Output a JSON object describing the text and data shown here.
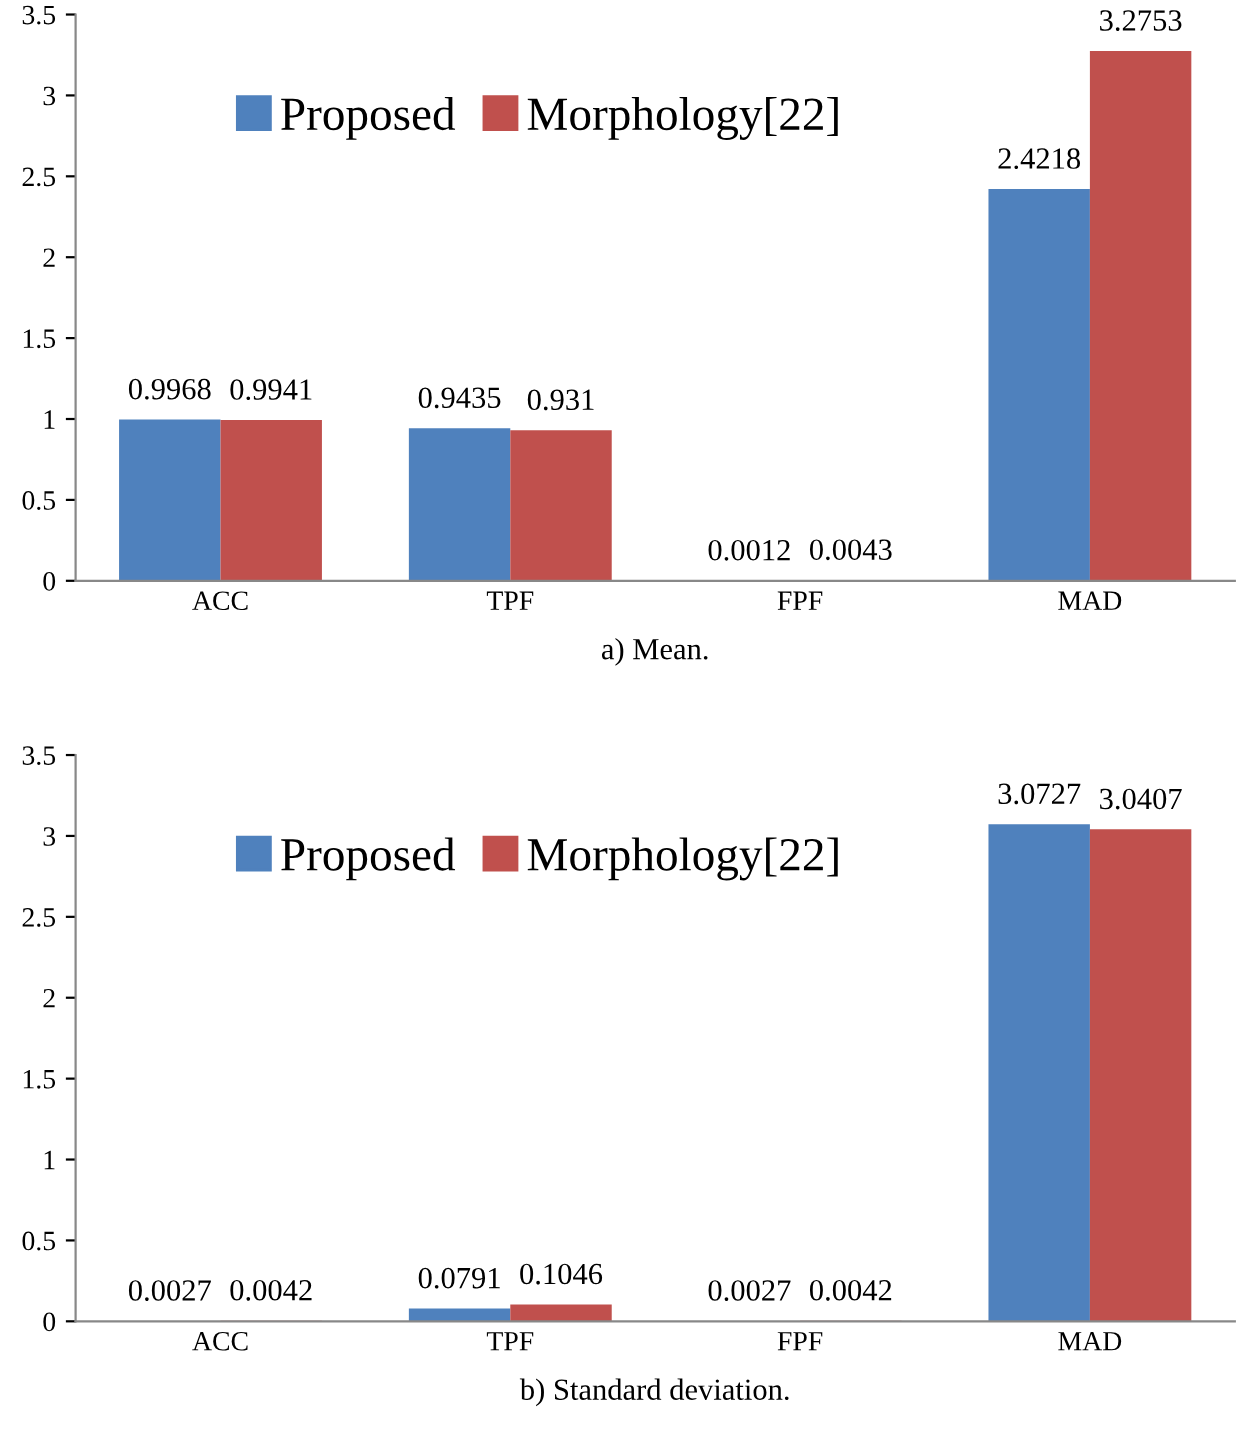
{
  "chart_data": [
    {
      "type": "bar",
      "xlabel": "a) Mean.",
      "categories": [
        "ACC",
        "TPF",
        "FPF",
        "MAD"
      ],
      "series": [
        {
          "name": "Proposed",
          "color": "#4f81bd",
          "values": [
            0.9968,
            0.9435,
            0.0012,
            2.4218
          ]
        },
        {
          "name": "Morphology[22]",
          "color": "#c0504d",
          "values": [
            0.9941,
            0.931,
            0.0043,
            3.2753
          ]
        }
      ],
      "ylim": [
        0,
        3.5
      ],
      "yticks": [
        0,
        0.5,
        1,
        1.5,
        2,
        2.5,
        3,
        3.5
      ],
      "data_labels": true,
      "legend": "top",
      "grid": false
    },
    {
      "type": "bar",
      "xlabel": "b) Standard deviation.",
      "categories": [
        "ACC",
        "TPF",
        "FPF",
        "MAD"
      ],
      "series": [
        {
          "name": "Proposed",
          "color": "#4f81bd",
          "values": [
            0.0027,
            0.0791,
            0.0027,
            3.0727
          ]
        },
        {
          "name": "Morphology[22]",
          "color": "#c0504d",
          "values": [
            0.0042,
            0.1046,
            0.0042,
            3.0407
          ]
        }
      ],
      "ylim": [
        0,
        3.5
      ],
      "yticks": [
        0,
        0.5,
        1,
        1.5,
        2,
        2.5,
        3,
        3.5
      ],
      "data_labels": true,
      "legend": "top",
      "grid": false
    }
  ]
}
